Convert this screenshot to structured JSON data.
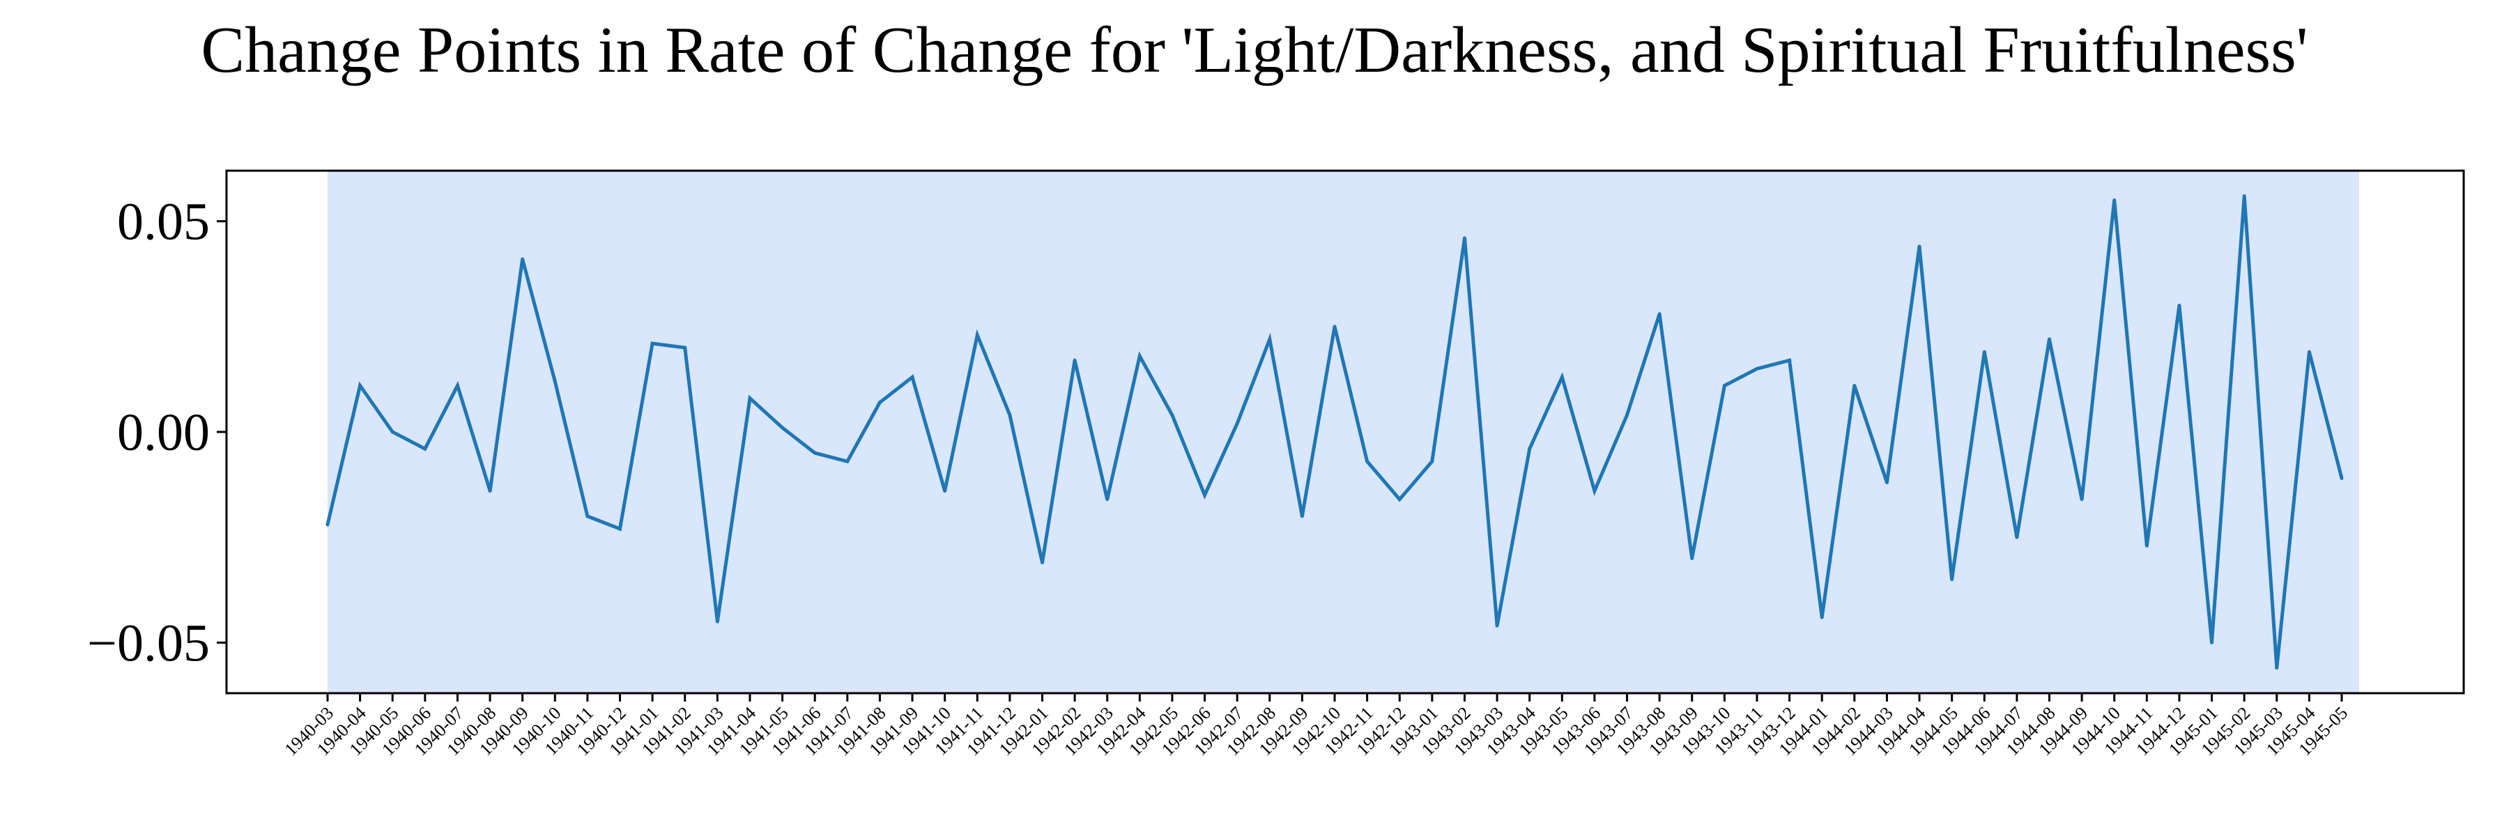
{
  "chart_data": {
    "type": "line",
    "title": "Change Points in Rate of Change for 'Light/Darkness, and Spiritual Fruitfulness'",
    "xlabel": "",
    "ylabel": "",
    "ylim": [
      -0.062,
      0.062
    ],
    "yticks": [
      -0.05,
      0.0,
      0.05
    ],
    "ytick_labels": [
      "−0.05",
      "0.00",
      "0.05"
    ],
    "categories": [
      "1940-03",
      "1940-04",
      "1940-05",
      "1940-06",
      "1940-07",
      "1940-08",
      "1940-09",
      "1940-10",
      "1940-11",
      "1940-12",
      "1941-01",
      "1941-02",
      "1941-03",
      "1941-04",
      "1941-05",
      "1941-06",
      "1941-07",
      "1941-08",
      "1941-09",
      "1941-10",
      "1941-11",
      "1941-12",
      "1942-01",
      "1942-02",
      "1942-03",
      "1942-04",
      "1942-05",
      "1942-06",
      "1942-07",
      "1942-08",
      "1942-09",
      "1942-10",
      "1942-11",
      "1942-12",
      "1943-01",
      "1943-02",
      "1943-03",
      "1943-04",
      "1943-05",
      "1943-06",
      "1943-07",
      "1943-08",
      "1943-09",
      "1943-10",
      "1943-11",
      "1943-12",
      "1944-01",
      "1944-02",
      "1944-03",
      "1944-04",
      "1944-05",
      "1944-06",
      "1944-07",
      "1944-08",
      "1944-09",
      "1944-10",
      "1944-11",
      "1944-12",
      "1945-01",
      "1945-02",
      "1945-03",
      "1945-04",
      "1945-05"
    ],
    "series": [
      {
        "name": "Rate of Change",
        "color": "#1f77b4",
        "values": [
          -0.022,
          0.011,
          0.0,
          -0.004,
          0.011,
          -0.014,
          0.041,
          0.012,
          -0.02,
          -0.023,
          0.021,
          0.02,
          -0.045,
          0.008,
          0.001,
          -0.005,
          -0.007,
          0.007,
          0.013,
          -0.014,
          0.023,
          0.004,
          -0.031,
          0.017,
          -0.016,
          0.018,
          0.004,
          -0.015,
          0.002,
          0.022,
          -0.02,
          0.025,
          -0.007,
          -0.016,
          -0.007,
          0.046,
          -0.046,
          -0.004,
          0.013,
          -0.014,
          0.004,
          0.028,
          -0.03,
          0.011,
          0.015,
          0.017,
          -0.044,
          0.011,
          -0.012,
          0.044,
          -0.035,
          0.019,
          -0.025,
          0.022,
          -0.016,
          0.055,
          -0.027,
          0.03,
          -0.05,
          0.056,
          -0.056,
          0.019,
          -0.011
        ]
      }
    ],
    "shaded_region": {
      "start": "1940-03",
      "end": "1945-05",
      "color": "#dae6fb"
    },
    "grid": false,
    "legend": "none"
  }
}
